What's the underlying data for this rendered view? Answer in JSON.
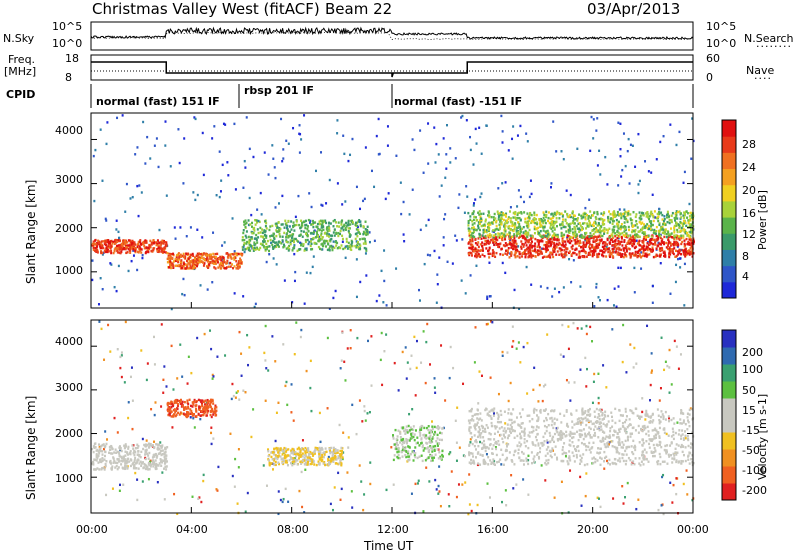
{
  "header": {
    "station": "Christmas Valley West (fitACF)",
    "beam": "Beam 22",
    "date": "03/Apr/2013"
  },
  "noise_panel": {
    "left_label": "N.Sky",
    "right_label": "N.Search",
    "left_ticks": [
      "10^5",
      "10^0"
    ],
    "right_ticks": [
      "10^5",
      "10^0"
    ]
  },
  "freq_panel": {
    "left_label_1": "Freq.",
    "left_label_2": "[MHz]",
    "right_label": "Nave",
    "left_ticks": [
      "18",
      "8"
    ],
    "right_ticks": [
      "60",
      "0"
    ]
  },
  "cpid": {
    "label": "CPID",
    "segments": [
      {
        "name": "normal (fast) 151 IF",
        "start_hour": 0.0,
        "end_hour": 5.9
      },
      {
        "name": "rbsp 201 IF",
        "start_hour": 5.9,
        "end_hour": 12.0
      },
      {
        "name": "normal (fast) -151 IF",
        "start_hour": 12.0,
        "end_hour": 24.0
      }
    ]
  },
  "x_axis": {
    "label": "Time UT",
    "ticks": [
      "00:00",
      "04:00",
      "08:00",
      "12:00",
      "16:00",
      "20:00",
      "00:00"
    ]
  },
  "power_panel": {
    "ylabel": "Slant Range [km]",
    "yticks": [
      "1000",
      "2000",
      "3000",
      "4000"
    ],
    "cbar_label": "Power [dB]",
    "cbar_ticks": [
      "4",
      "8",
      "12",
      "16",
      "20",
      "24",
      "28"
    ],
    "cbar_colors": [
      "#1e28d8",
      "#2f56c8",
      "#2f7fa8",
      "#3a9a6a",
      "#5ab34a",
      "#a8d23a",
      "#f0d020",
      "#f4a020",
      "#f07020",
      "#e83a1a",
      "#e01010"
    ]
  },
  "velocity_panel": {
    "ylabel": "Slant Range [km]",
    "yticks": [
      "1000",
      "2000",
      "3000",
      "4000"
    ],
    "cbar_label": "Velocity [m s-1]",
    "cbar_ticks": [
      "200",
      "100",
      "50",
      "15",
      "-15",
      "-50",
      "-100",
      "-200"
    ],
    "cbar_colors": [
      "#2830c0",
      "#2f6ab0",
      "#3aa070",
      "#5cc040",
      "#c8c8c0",
      "#c8c8c0",
      "#f0c020",
      "#f09020",
      "#f06020",
      "#e02020"
    ]
  },
  "chart_data": {
    "type": "heatmap",
    "title": "Christmas Valley West (fitACF)  Beam 22",
    "xlabel": "Time UT",
    "ylabel": "Slant Range [km]",
    "xlim_hours": [
      0,
      24
    ],
    "ylim_km": [
      180,
      4600
    ],
    "panels": [
      {
        "name": "power",
        "units": "dB",
        "range": [
          0,
          30
        ],
        "bands": [
          {
            "t": [
              0,
              3
            ],
            "r0": 1450,
            "r1": 1750,
            "value": 26
          },
          {
            "t": [
              3,
              6
            ],
            "r0": 1100,
            "r1": 1450,
            "value": 24
          },
          {
            "t": [
              6,
              11
            ],
            "r0": 1500,
            "r1": 2200,
            "value": 12
          },
          {
            "t": [
              15,
              24
            ],
            "r0": 1350,
            "r1": 1850,
            "value": 27
          },
          {
            "t": [
              15,
              24
            ],
            "r0": 1800,
            "r1": 2400,
            "value": 14
          }
        ]
      },
      {
        "name": "velocity",
        "units": "m s-1",
        "range": [
          -200,
          200
        ],
        "bands": [
          {
            "t": [
              0,
              3
            ],
            "r0": 1200,
            "r1": 1800,
            "value": 0
          },
          {
            "t": [
              3,
              5
            ],
            "r0": 2400,
            "r1": 2800,
            "value": -150
          },
          {
            "t": [
              7,
              10
            ],
            "r0": 1300,
            "r1": 1700,
            "value": -40
          },
          {
            "t": [
              12,
              14
            ],
            "r0": 1400,
            "r1": 2200,
            "value": 40
          },
          {
            "t": [
              15,
              24
            ],
            "r0": 1300,
            "r1": 2600,
            "value": 0
          }
        ]
      }
    ]
  }
}
